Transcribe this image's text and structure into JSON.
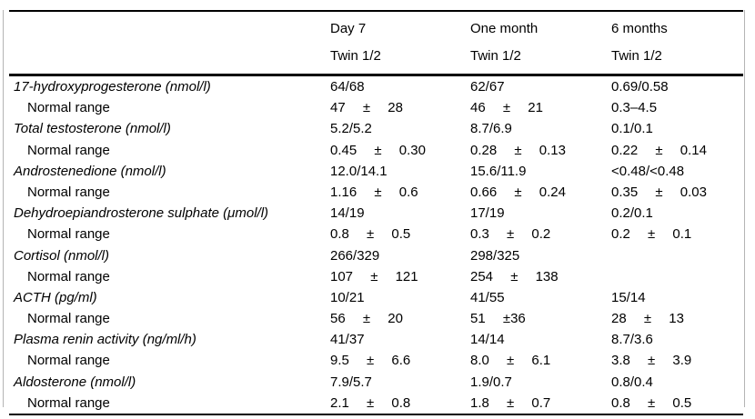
{
  "table": {
    "title": "twin-adrenal-hormone-levels",
    "header": {
      "time_points": [
        {
          "label": "Day 7",
          "sublabel": "Twin 1/2"
        },
        {
          "label": "One month",
          "sublabel": "Twin 1/2"
        },
        {
          "label": "6 months",
          "sublabel": "Twin 1/2"
        }
      ]
    },
    "rows": [
      {
        "label": "17-hydroxyprogesterone (nmol/l)",
        "type": "param",
        "cells": [
          "64/68",
          "62/67",
          "0.69/0.58"
        ]
      },
      {
        "label": "Normal range",
        "type": "normal",
        "cells": [
          "47 ± 28",
          "46 ± 21",
          "0.3–4.5"
        ]
      },
      {
        "label": "Total testosterone (nmol/l)",
        "type": "param",
        "cells": [
          "5.2/5.2",
          "8.7/6.9",
          "0.1/0.1"
        ]
      },
      {
        "label": "Normal range",
        "type": "normal",
        "cells": [
          "0.45 ± 0.30",
          "0.28 ± 0.13",
          "0.22 ± 0.14"
        ]
      },
      {
        "label": "Androstenedione (nmol/l)",
        "type": "param",
        "cells": [
          "12.0/14.1",
          "15.6/11.9",
          "<0.48/<0.48"
        ]
      },
      {
        "label": "Normal range",
        "type": "normal",
        "cells": [
          "1.16 ± 0.6",
          "0.66 ± 0.24",
          "0.35 ± 0.03"
        ]
      },
      {
        "label": "Dehydroepiandrosterone sulphate (μmol/l)",
        "type": "param",
        "cells": [
          "14/19",
          "17/19",
          "0.2/0.1"
        ]
      },
      {
        "label": "Normal range",
        "type": "normal",
        "cells": [
          "0.8 ± 0.5",
          "0.3 ± 0.2",
          "0.2 ± 0.1"
        ]
      },
      {
        "label": "Cortisol (nmol/l)",
        "type": "param",
        "cells": [
          "266/329",
          "298/325",
          ""
        ]
      },
      {
        "label": "Normal range",
        "type": "normal",
        "cells": [
          "107 ± 121",
          "254 ± 138",
          ""
        ]
      },
      {
        "label": "ACTH (pg/ml)",
        "type": "param",
        "cells": [
          "10/21",
          "41/55",
          "15/14"
        ]
      },
      {
        "label": "Normal range",
        "type": "normal",
        "cells": [
          "56 ± 20",
          "51 ±36",
          "28 ± 13"
        ]
      },
      {
        "label": "Plasma renin activity (ng/ml/h)",
        "type": "param",
        "cells": [
          "41/37",
          "14/14",
          "8.7/3.6"
        ]
      },
      {
        "label": "Normal range",
        "type": "normal",
        "cells": [
          "9.5 ± 6.6",
          "8.0 ± 6.1",
          "3.8 ± 3.9"
        ]
      },
      {
        "label": "Aldosterone (nmol/l)",
        "type": "param",
        "cells": [
          "7.9/5.7",
          "1.9/0.7",
          "0.8/0.4"
        ]
      },
      {
        "label": "Normal range",
        "type": "normal",
        "cells": [
          "2.1 ± 0.8",
          "1.8 ± 0.7",
          "0.8 ± 0.5"
        ]
      }
    ]
  }
}
